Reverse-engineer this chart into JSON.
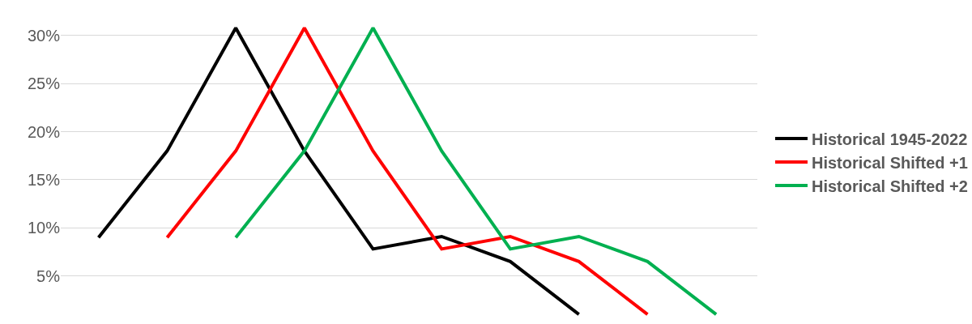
{
  "chart_data": {
    "type": "line",
    "categories": [
      null,
      null,
      null,
      null,
      null,
      null,
      null,
      null,
      null,
      null
    ],
    "series": [
      {
        "name": "Historical 1945-2022",
        "color": "#000000",
        "values": [
          9,
          18,
          30.8,
          18,
          7.8,
          9.1,
          6.5,
          1,
          null,
          null
        ]
      },
      {
        "name": "Historical Shifted +1",
        "color": "#ff0000",
        "values": [
          null,
          9,
          18,
          30.8,
          18,
          7.8,
          9.1,
          6.5,
          1,
          null
        ]
      },
      {
        "name": "Historical Shifted +2",
        "color": "#00b050",
        "values": [
          null,
          null,
          9,
          18,
          30.8,
          18,
          7.8,
          9.1,
          6.5,
          1
        ]
      }
    ],
    "ylim": [
      0,
      33.7
    ],
    "yticks": [
      {
        "value": 5,
        "label": "5%"
      },
      {
        "value": 10,
        "label": "10%"
      },
      {
        "value": 15,
        "label": "15%"
      },
      {
        "value": 20,
        "label": "20%"
      },
      {
        "value": 25,
        "label": "25%"
      },
      {
        "value": 30,
        "label": "30%"
      }
    ],
    "grid": "y",
    "legend": "right",
    "marker": "none",
    "line_style": "solid"
  }
}
